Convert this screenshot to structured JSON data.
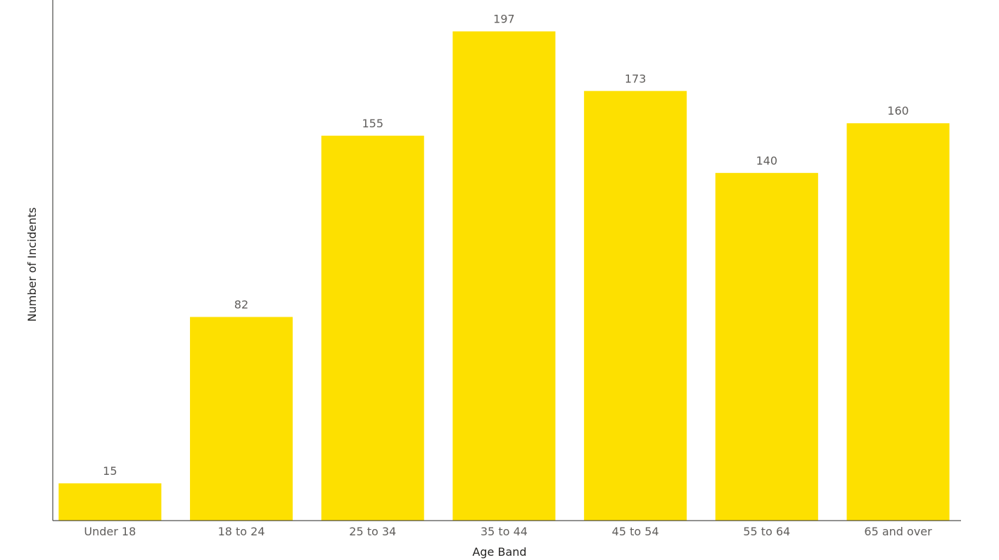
{
  "chart_data": {
    "type": "bar",
    "title": "",
    "xlabel": "Age Band",
    "ylabel": "Number of Incidents",
    "categories": [
      "Under 18",
      "18 to 24",
      "25 to 34",
      "35 to 44",
      "45 to 54",
      "55 to 64",
      "65 and over"
    ],
    "values": [
      15,
      82,
      155,
      197,
      173,
      140,
      160
    ],
    "data_labels": [
      "15",
      "82",
      "155",
      "197",
      "173",
      "140",
      "160"
    ],
    "ylim": [
      0,
      210
    ],
    "grid": false,
    "legend": "none",
    "bar_color": "#FDE000",
    "axis_color": "#252423",
    "label_color": "#605e5c"
  }
}
